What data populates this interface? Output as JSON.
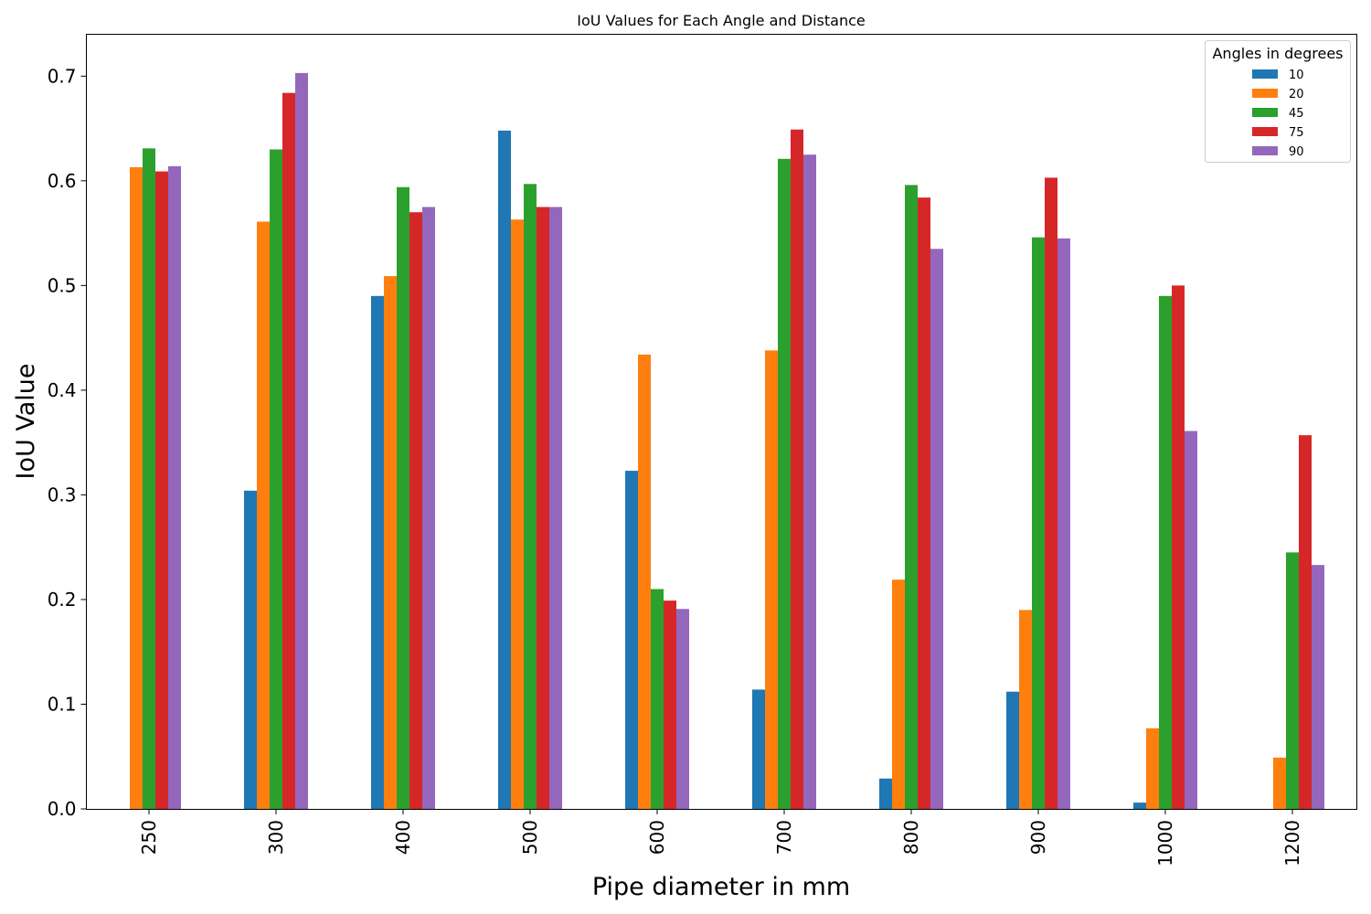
{
  "chart_data": {
    "type": "bar",
    "title": "IoU Values for Each Angle and Distance",
    "xlabel": "Pipe diameter in mm",
    "ylabel": "IoU Value",
    "categories": [
      "250",
      "300",
      "400",
      "500",
      "600",
      "700",
      "800",
      "900",
      "1000",
      "1200"
    ],
    "ylim": [
      0,
      0.74
    ],
    "yticks": [
      "0.0",
      "0.1",
      "0.2",
      "0.3",
      "0.4",
      "0.5",
      "0.6",
      "0.7"
    ],
    "grid": false,
    "legend": {
      "title": "Angles in degrees",
      "placement": "top-right"
    },
    "series": [
      {
        "name": "10",
        "color": "#1f77b4",
        "values": [
          0.0,
          0.304,
          0.49,
          0.648,
          0.323,
          0.114,
          0.029,
          0.112,
          0.006,
          0.0
        ]
      },
      {
        "name": "20",
        "color": "#ff7f0e",
        "values": [
          0.613,
          0.561,
          0.509,
          0.563,
          0.434,
          0.438,
          0.219,
          0.19,
          0.077,
          0.049
        ]
      },
      {
        "name": "45",
        "color": "#2ca02c",
        "values": [
          0.631,
          0.63,
          0.594,
          0.597,
          0.21,
          0.621,
          0.596,
          0.546,
          0.49,
          0.245
        ]
      },
      {
        "name": "75",
        "color": "#d62728",
        "values": [
          0.609,
          0.684,
          0.57,
          0.575,
          0.199,
          0.649,
          0.584,
          0.603,
          0.5,
          0.357
        ]
      },
      {
        "name": "90",
        "color": "#9467bd",
        "values": [
          0.614,
          0.703,
          0.575,
          0.575,
          0.191,
          0.625,
          0.535,
          0.545,
          0.361,
          0.233
        ]
      }
    ]
  }
}
